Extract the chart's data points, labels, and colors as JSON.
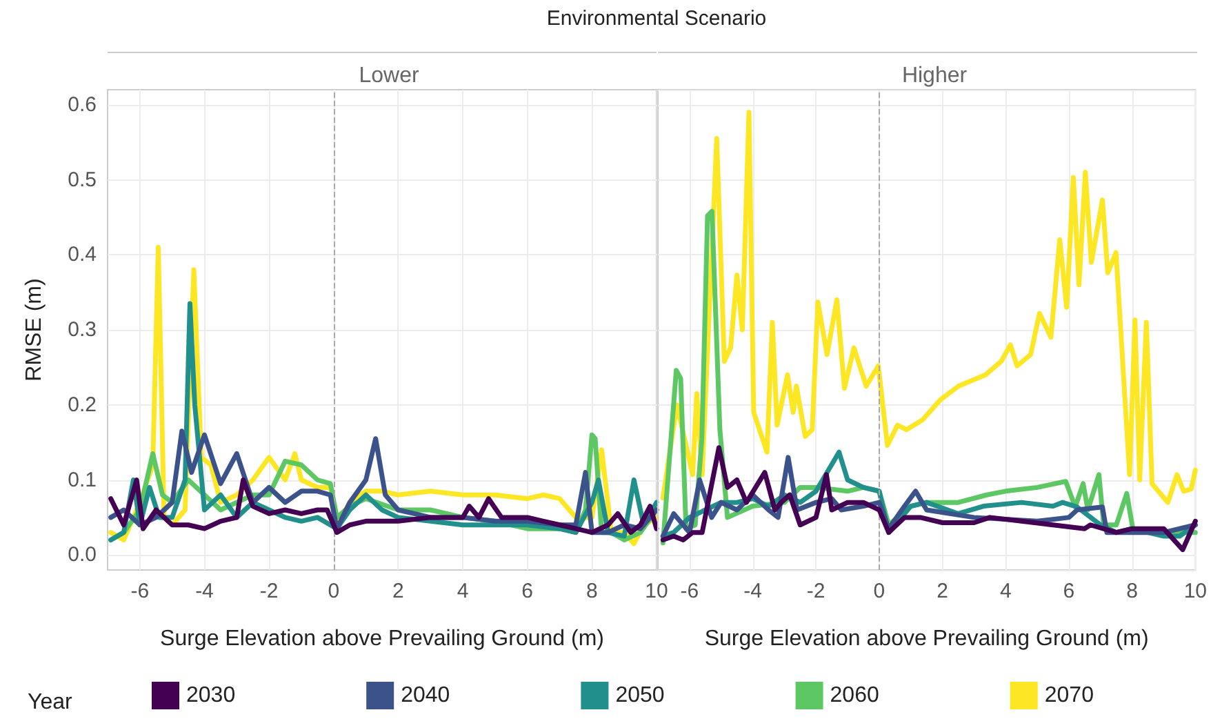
{
  "chart_data": [
    {
      "type": "line",
      "title": "Lower",
      "annotations": [
        "Environmental Scenario"
      ],
      "xlabel": "Surge Elevation above Prevailing Ground (m)",
      "ylabel": "RMSE (m)",
      "legend_title": "Year",
      "legend": "bottom",
      "grid": true,
      "xlim": [
        -7,
        10
      ],
      "xticks": [
        -6,
        -4,
        -2,
        0,
        2,
        4,
        6,
        8,
        10
      ],
      "ylim": [
        -0.02,
        0.62
      ],
      "yticks": [
        {
          "value": 0,
          "label": "0.0"
        },
        0.1,
        0.2,
        0.3,
        0.4,
        0.5,
        0.6
      ],
      "ref_lines": [
        {
          "axis": "x",
          "value": 0,
          "color": "#aaaaaa",
          "line_style": "dashed"
        }
      ],
      "series": [
        {
          "name": "2070",
          "color": "#fde725",
          "x": [
            -6.9,
            -6.5,
            -6,
            -5.6,
            -5.43,
            -5.25,
            -5,
            -4.6,
            -4.33,
            -4.1,
            -3.8,
            -3.5,
            -3,
            -2.5,
            -2,
            -1.5,
            -1.2,
            -1,
            -0.5,
            -0.1,
            0.1,
            0.5,
            1,
            1.5,
            2,
            3,
            4,
            5,
            6,
            6.5,
            7,
            7.5,
            8,
            8.3,
            8.6,
            9,
            9.3,
            9.6,
            10
          ],
          "values": [
            0.03,
            0.02,
            0.07,
            0.12,
            0.41,
            0.05,
            0.04,
            0.06,
            0.38,
            0.13,
            0.12,
            0.07,
            0.08,
            0.1,
            0.13,
            0.1,
            0.135,
            0.1,
            0.09,
            0.09,
            0.04,
            0.07,
            0.085,
            0.085,
            0.08,
            0.085,
            0.08,
            0.08,
            0.075,
            0.08,
            0.075,
            0.05,
            0.05,
            0.14,
            0.03,
            0.03,
            0.015,
            0.04,
            0.05
          ]
        },
        {
          "name": "2060",
          "color": "#5dc863",
          "x": [
            -6.9,
            -6.5,
            -6,
            -5.6,
            -5.3,
            -5,
            -4.5,
            -4,
            -3.5,
            -3,
            -2.5,
            -2,
            -1.5,
            -1,
            -0.5,
            -0.1,
            0.1,
            0.5,
            1,
            2,
            3,
            4,
            5,
            6,
            7,
            7.5,
            7.8,
            8,
            8.1,
            8.3,
            8.6,
            9,
            9.5,
            10
          ],
          "values": [
            0.02,
            0.03,
            0.06,
            0.135,
            0.08,
            0.07,
            0.1,
            0.08,
            0.06,
            0.07,
            0.08,
            0.08,
            0.125,
            0.12,
            0.1,
            0.095,
            0.05,
            0.065,
            0.075,
            0.06,
            0.06,
            0.05,
            0.045,
            0.035,
            0.035,
            0.03,
            0.06,
            0.16,
            0.155,
            0.03,
            0.03,
            0.02,
            0.03,
            0.06
          ]
        },
        {
          "name": "2050",
          "color": "#21908c",
          "x": [
            -6.9,
            -6.5,
            -6.2,
            -6,
            -5.7,
            -5.4,
            -5,
            -4.6,
            -4.45,
            -4.3,
            -4,
            -3.5,
            -3,
            -2.5,
            -2,
            -1.5,
            -1,
            -0.5,
            0.1,
            0.5,
            1,
            1.5,
            2,
            3,
            4,
            5,
            6,
            7,
            7.5,
            8,
            8.2,
            8.5,
            9,
            9.3,
            9.6,
            10
          ],
          "values": [
            0.02,
            0.03,
            0.1,
            0.04,
            0.09,
            0.05,
            0.05,
            0.1,
            0.335,
            0.2,
            0.06,
            0.08,
            0.05,
            0.07,
            0.06,
            0.05,
            0.045,
            0.05,
            0.035,
            0.06,
            0.08,
            0.06,
            0.05,
            0.045,
            0.04,
            0.04,
            0.04,
            0.035,
            0.03,
            0.07,
            0.1,
            0.03,
            0.025,
            0.1,
            0.04,
            0.07
          ]
        },
        {
          "name": "2040",
          "color": "#3b528b",
          "x": [
            -6.9,
            -6.5,
            -6,
            -5.5,
            -5,
            -4.7,
            -4.4,
            -4,
            -3.5,
            -3,
            -2.5,
            -2,
            -1.5,
            -1,
            -0.5,
            -0.1,
            0.1,
            0.5,
            1,
            1.3,
            1.6,
            2,
            3,
            4,
            5,
            6,
            7,
            7.5,
            7.8,
            8,
            8.5,
            9,
            9.5,
            10
          ],
          "values": [
            0.05,
            0.06,
            0.04,
            0.05,
            0.07,
            0.165,
            0.11,
            0.16,
            0.095,
            0.135,
            0.07,
            0.09,
            0.07,
            0.085,
            0.085,
            0.08,
            0.035,
            0.07,
            0.1,
            0.155,
            0.08,
            0.06,
            0.05,
            0.05,
            0.045,
            0.045,
            0.04,
            0.04,
            0.11,
            0.03,
            0.03,
            0.04,
            0.035,
            0.06
          ]
        },
        {
          "name": "2030",
          "color": "#440154",
          "x": [
            -6.9,
            -6.5,
            -6.1,
            -5.9,
            -5.5,
            -5,
            -4.5,
            -4,
            -3.5,
            -3,
            -2.8,
            -2.5,
            -2,
            -1.5,
            -1,
            -0.5,
            -0.2,
            0.1,
            0.5,
            1,
            2,
            3,
            4,
            4.2,
            4.5,
            4.8,
            5.2,
            6,
            6.5,
            7,
            7.5,
            8,
            8.5,
            8.8,
            9.2,
            9.5,
            9.8,
            10
          ],
          "values": [
            0.075,
            0.04,
            0.1,
            0.035,
            0.06,
            0.04,
            0.04,
            0.035,
            0.045,
            0.05,
            0.1,
            0.065,
            0.055,
            0.06,
            0.055,
            0.06,
            0.06,
            0.03,
            0.04,
            0.045,
            0.045,
            0.05,
            0.05,
            0.065,
            0.05,
            0.075,
            0.05,
            0.05,
            0.045,
            0.04,
            0.035,
            0.03,
            0.04,
            0.055,
            0.03,
            0.04,
            0.065,
            0.035
          ]
        }
      ]
    },
    {
      "type": "line",
      "title": "Higher",
      "xlabel": "Surge Elevation above Prevailing Ground (m)",
      "grid": true,
      "tick_labels": "x",
      "xlim": [
        -7,
        10
      ],
      "xticks": [
        -6,
        -4,
        -2,
        0,
        2,
        4,
        6,
        8,
        10
      ],
      "ylim": [
        -0.02,
        0.62
      ],
      "ref_lines": [
        {
          "axis": "x",
          "value": 0,
          "color": "#aaaaaa",
          "line_style": "dashed"
        }
      ],
      "series": [
        {
          "name": "2070",
          "color": "#fde725",
          "x": [
            -6.84,
            -6.4,
            -5.9,
            -5.77,
            -5.6,
            -5.14,
            -4.9,
            -4.7,
            -4.5,
            -4.33,
            -4.12,
            -3.97,
            -3.55,
            -3.38,
            -3.23,
            -2.9,
            -2.72,
            -2.62,
            -2.34,
            -2.12,
            -1.94,
            -1.65,
            -1.34,
            -1.1,
            -0.8,
            -0.41,
            -0.03,
            0.26,
            0.58,
            0.86,
            1.37,
            1.94,
            2.51,
            3.36,
            3.86,
            4.15,
            4.36,
            4.79,
            5.07,
            5.43,
            5.71,
            5.93,
            6.14,
            6.32,
            6.52,
            6.71,
            7.06,
            7.23,
            7.49,
            7.92,
            8.09,
            8.24,
            8.45,
            8.63,
            9.13,
            9.42,
            9.63,
            9.87,
            10
          ],
          "values": [
            0.076,
            0.2,
            0.107,
            0.215,
            0.107,
            0.555,
            0.258,
            0.276,
            0.373,
            0.3,
            0.59,
            0.19,
            0.137,
            0.31,
            0.173,
            0.24,
            0.19,
            0.225,
            0.158,
            0.167,
            0.337,
            0.267,
            0.34,
            0.222,
            0.276,
            0.225,
            0.252,
            0.146,
            0.173,
            0.167,
            0.18,
            0.207,
            0.225,
            0.24,
            0.258,
            0.28,
            0.252,
            0.267,
            0.322,
            0.29,
            0.42,
            0.33,
            0.503,
            0.36,
            0.51,
            0.39,
            0.473,
            0.376,
            0.403,
            0.107,
            0.313,
            0.1,
            0.31,
            0.095,
            0.07,
            0.107,
            0.085,
            0.088,
            0.113
          ]
        },
        {
          "name": "2060",
          "color": "#5dc863",
          "x": [
            -6.84,
            -6.42,
            -6.28,
            -6.11,
            -5.82,
            -5.61,
            -5.43,
            -5.29,
            -5.04,
            -4.8,
            -4,
            -3,
            -2.5,
            -2,
            -1,
            -0.5,
            0,
            0.3,
            1,
            1.5,
            2.5,
            3.4,
            4,
            5,
            5.9,
            6.2,
            6.45,
            6.6,
            6.95,
            7.1,
            7.5,
            7.83,
            8.03,
            9,
            9.5,
            10
          ],
          "values": [
            0.016,
            0.246,
            0.235,
            0.035,
            0.04,
            0.155,
            0.452,
            0.458,
            0.167,
            0.05,
            0.065,
            0.07,
            0.09,
            0.09,
            0.085,
            0.09,
            0.085,
            0.04,
            0.065,
            0.07,
            0.07,
            0.08,
            0.085,
            0.09,
            0.098,
            0.064,
            0.095,
            0.06,
            0.107,
            0.04,
            0.04,
            0.082,
            0.033,
            0.03,
            0.03,
            0.03
          ]
        },
        {
          "name": "2050",
          "color": "#21908c",
          "x": [
            -6.84,
            -6.5,
            -6,
            -5.5,
            -5,
            -4.5,
            -4,
            -3.5,
            -3,
            -2.5,
            -2,
            -1.27,
            -1,
            -0.5,
            0,
            0.3,
            1,
            1.5,
            2.5,
            3.3,
            4.5,
            5.5,
            5.8,
            6.26,
            7,
            7.5,
            8,
            9,
            9.5,
            10
          ],
          "values": [
            0.025,
            0.03,
            0.05,
            0.06,
            0.07,
            0.07,
            0.075,
            0.065,
            0.08,
            0.07,
            0.085,
            0.137,
            0.1,
            0.09,
            0.085,
            0.03,
            0.065,
            0.07,
            0.055,
            0.065,
            0.07,
            0.065,
            0.07,
            0.064,
            0.04,
            0.03,
            0.035,
            0.025,
            0.025,
            0.04
          ]
        },
        {
          "name": "2040",
          "color": "#3b528b",
          "x": [
            -6.84,
            -6.5,
            -6,
            -5.68,
            -5.3,
            -5,
            -4.5,
            -4,
            -3.5,
            -3.2,
            -2.88,
            -2.6,
            -2,
            -1.5,
            -1.2,
            -0.5,
            0,
            0.3,
            0.8,
            1.15,
            1.5,
            3,
            5,
            6,
            6.26,
            7.06,
            7.2,
            8,
            9,
            10
          ],
          "values": [
            0.025,
            0.055,
            0.03,
            0.1,
            0.05,
            0.07,
            0.06,
            0.08,
            0.06,
            0.05,
            0.13,
            0.06,
            0.07,
            0.075,
            0.06,
            0.065,
            0.07,
            0.035,
            0.065,
            0.085,
            0.06,
            0.05,
            0.045,
            0.05,
            0.06,
            0.064,
            0.03,
            0.03,
            0.03,
            0.04
          ]
        },
        {
          "name": "2030",
          "color": "#440154",
          "x": [
            -6.84,
            -6.5,
            -6.2,
            -5.9,
            -5.6,
            -5.07,
            -4.8,
            -4.5,
            -4.2,
            -3.62,
            -3.3,
            -3.1,
            -2.83,
            -2.5,
            -2,
            -1.67,
            -1.5,
            -1,
            -0.5,
            0,
            0.3,
            0.8,
            1.3,
            2,
            3,
            3.5,
            4.5,
            5.5,
            6.5,
            6.68,
            7.5,
            8,
            9,
            9.6,
            10
          ],
          "values": [
            0.02,
            0.025,
            0.02,
            0.03,
            0.03,
            0.143,
            0.09,
            0.1,
            0.07,
            0.11,
            0.06,
            0.07,
            0.08,
            0.04,
            0.05,
            0.107,
            0.06,
            0.07,
            0.07,
            0.06,
            0.03,
            0.05,
            0.05,
            0.043,
            0.043,
            0.05,
            0.045,
            0.04,
            0.035,
            0.04,
            0.03,
            0.035,
            0.035,
            0.007,
            0.045
          ]
        }
      ]
    }
  ]
}
